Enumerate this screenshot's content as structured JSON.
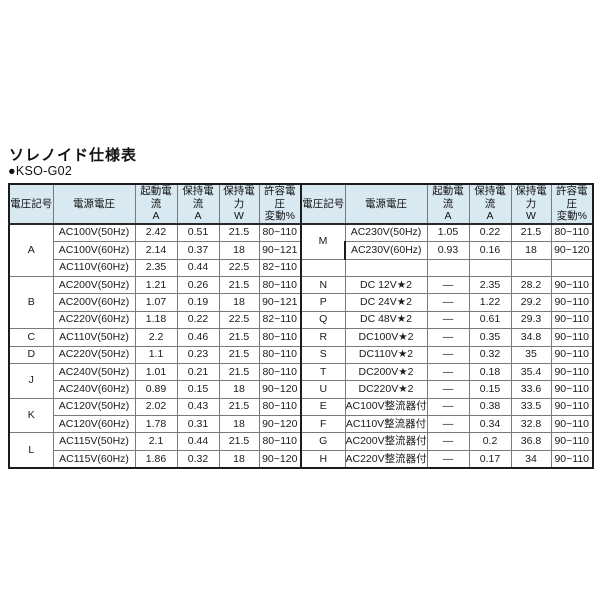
{
  "page": {
    "title": "ソレノイド仕様表",
    "model": "●KSO-G02"
  },
  "table": {
    "headers": [
      {
        "line1": "電圧記号",
        "line2": ""
      },
      {
        "line1": "電源電圧",
        "line2": ""
      },
      {
        "line1": "起動電流",
        "line2": "A"
      },
      {
        "line1": "保持電流",
        "line2": "A"
      },
      {
        "line1": "保持電力",
        "line2": "W"
      },
      {
        "line1": "許容電圧",
        "line2": "変動%"
      }
    ],
    "left_rows": [
      {
        "symbol": {
          "label": "A",
          "span": 3
        },
        "cells": [
          "AC100V(50Hz)",
          "2.42",
          "0.51",
          "21.5",
          "80~110"
        ]
      },
      {
        "cells": [
          "AC100V(60Hz)",
          "2.14",
          "0.37",
          "18",
          "90~121"
        ]
      },
      {
        "cells": [
          "AC110V(60Hz)",
          "2.35",
          "0.44",
          "22.5",
          "82~110"
        ]
      },
      {
        "symbol": {
          "label": "B",
          "span": 3
        },
        "cells": [
          "AC200V(50Hz)",
          "1.21",
          "0.26",
          "21.5",
          "80~110"
        ]
      },
      {
        "cells": [
          "AC200V(60Hz)",
          "1.07",
          "0.19",
          "18",
          "90~121"
        ]
      },
      {
        "cells": [
          "AC220V(60Hz)",
          "1.18",
          "0.22",
          "22.5",
          "82~110"
        ]
      },
      {
        "symbol": {
          "label": "C",
          "span": 1
        },
        "cells": [
          "AC110V(50Hz)",
          "2.2",
          "0.46",
          "21.5",
          "80~110"
        ]
      },
      {
        "symbol": {
          "label": "D",
          "span": 1
        },
        "cells": [
          "AC220V(50Hz)",
          "1.1",
          "0.23",
          "21.5",
          "80~110"
        ]
      },
      {
        "symbol": {
          "label": "J",
          "span": 2
        },
        "cells": [
          "AC240V(50Hz)",
          "1.01",
          "0.21",
          "21.5",
          "80~110"
        ]
      },
      {
        "cells": [
          "AC240V(60Hz)",
          "0.89",
          "0.15",
          "18",
          "90~120"
        ]
      },
      {
        "symbol": {
          "label": "K",
          "span": 2
        },
        "cells": [
          "AC120V(50Hz)",
          "2.02",
          "0.43",
          "21.5",
          "80~110"
        ]
      },
      {
        "cells": [
          "AC120V(60Hz)",
          "1.78",
          "0.31",
          "18",
          "90~120"
        ]
      },
      {
        "symbol": {
          "label": "L",
          "span": 2
        },
        "cells": [
          "AC115V(50Hz)",
          "2.1",
          "0.44",
          "21.5",
          "80~110"
        ]
      },
      {
        "cells": [
          "AC115V(60Hz)",
          "1.86",
          "0.32",
          "18",
          "90~120"
        ]
      }
    ],
    "right_rows": [
      {
        "symbol": {
          "label": "M",
          "span": 2
        },
        "cells": [
          "AC230V(50Hz)",
          "1.05",
          "0.22",
          "21.5",
          "80~110"
        ]
      },
      {
        "cells": [
          "AC230V(60Hz)",
          "0.93",
          "0.16",
          "18",
          "90~120"
        ]
      },
      {
        "symbol": {
          "label": "",
          "span": 1
        },
        "cells": [
          "",
          "",
          "",
          "",
          ""
        ]
      },
      {
        "symbol": {
          "label": "N",
          "span": 1
        },
        "cells": [
          "DC 12V★2",
          "—",
          "2.35",
          "28.2",
          "90~110"
        ]
      },
      {
        "symbol": {
          "label": "P",
          "span": 1
        },
        "cells": [
          "DC 24V★2",
          "—",
          "1.22",
          "29.2",
          "90~110"
        ]
      },
      {
        "symbol": {
          "label": "Q",
          "span": 1
        },
        "cells": [
          "DC 48V★2",
          "—",
          "0.61",
          "29.3",
          "90~110"
        ]
      },
      {
        "symbol": {
          "label": "R",
          "span": 1
        },
        "cells": [
          "DC100V★2",
          "—",
          "0.35",
          "34.8",
          "90~110"
        ]
      },
      {
        "symbol": {
          "label": "S",
          "span": 1
        },
        "cells": [
          "DC110V★2",
          "—",
          "0.32",
          "35",
          "90~110"
        ]
      },
      {
        "symbol": {
          "label": "T",
          "span": 1
        },
        "cells": [
          "DC200V★2",
          "—",
          "0.18",
          "35.4",
          "90~110"
        ]
      },
      {
        "symbol": {
          "label": "U",
          "span": 1
        },
        "cells": [
          "DC220V★2",
          "—",
          "0.15",
          "33.6",
          "90~110"
        ]
      },
      {
        "symbol": {
          "label": "E",
          "span": 1
        },
        "cells": [
          "AC100V整流器付",
          "—",
          "0.38",
          "33.5",
          "90~110"
        ]
      },
      {
        "symbol": {
          "label": "F",
          "span": 1
        },
        "cells": [
          "AC110V整流器付",
          "—",
          "0.34",
          "32.8",
          "90~110"
        ]
      },
      {
        "symbol": {
          "label": "G",
          "span": 1
        },
        "cells": [
          "AC200V整流器付",
          "—",
          "0.2",
          "36.8",
          "90~110"
        ]
      },
      {
        "symbol": {
          "label": "H",
          "span": 1
        },
        "cells": [
          "AC220V整流器付",
          "—",
          "0.17",
          "34",
          "90~110"
        ]
      }
    ]
  }
}
